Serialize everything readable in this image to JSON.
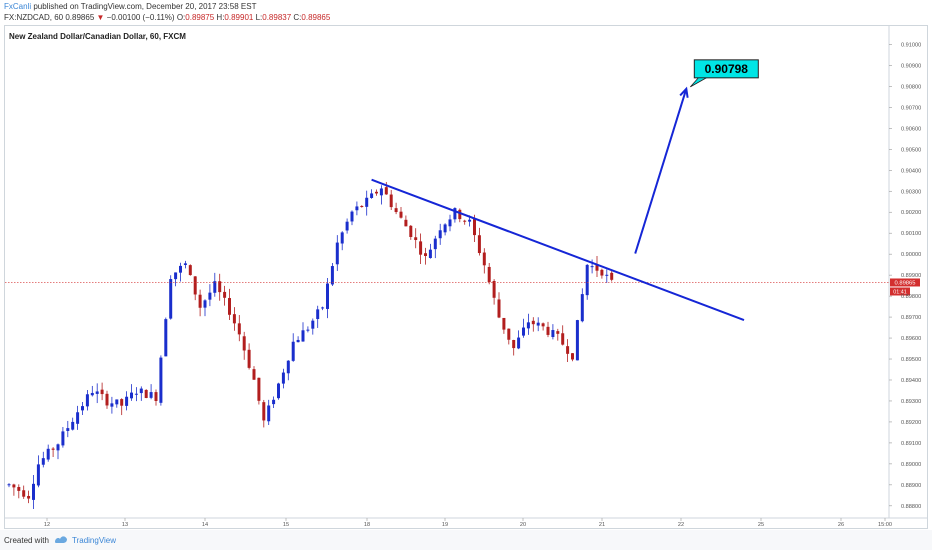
{
  "header": {
    "author": "FxCanli",
    "published_text": "published on TradingView.com, December 20, 2017 23:58 EST",
    "symbol": "FX:NZDCAD, 60",
    "last": "0.89865",
    "change": "−0.00100 (−0.11%)",
    "open_label": "O:",
    "open": "0.89875",
    "high_label": "H:",
    "high": "0.89901",
    "low_label": "L:",
    "low": "0.89837",
    "close_label": "C:",
    "close": "0.89865"
  },
  "footer": {
    "created_with": "Created with",
    "brand": "TradingView"
  },
  "colors": {
    "bull": "#1a2ecc",
    "bear": "#b21e1e",
    "trendline": "#1526d6",
    "target_fill": "#00e5e5",
    "price_line": "#d32f2f"
  },
  "chart_data": {
    "type": "candlestick",
    "title": "New Zealand Dollar/Canadian Dollar, 60, FXCM",
    "x_ticks": [
      "12",
      "13",
      "14",
      "15",
      "18",
      "19",
      "20",
      "21",
      "22",
      "25",
      "26",
      "15:00"
    ],
    "y_ticks": [
      "0.91000",
      "0.90900",
      "0.90800",
      "0.90700",
      "0.90600",
      "0.90500",
      "0.90400",
      "0.90300",
      "0.90200",
      "0.90100",
      "0.90000",
      "0.89900",
      "0.89800",
      "0.89700",
      "0.89600",
      "0.89500",
      "0.89400",
      "0.89300",
      "0.89200",
      "0.89100",
      "0.89000",
      "0.88900",
      "0.88800"
    ],
    "ylim": [
      0.888,
      0.911
    ],
    "current_price_label": "0.89865",
    "countdown_label": "01:41",
    "target_label": "0.90798",
    "path": [
      [
        0,
        0.889
      ],
      [
        4,
        0.8885
      ],
      [
        6,
        0.89
      ],
      [
        10,
        0.891
      ],
      [
        14,
        0.8925
      ],
      [
        17,
        0.8935
      ],
      [
        20,
        0.893
      ],
      [
        23,
        0.8928
      ],
      [
        26,
        0.8935
      ],
      [
        30,
        0.8932
      ],
      [
        33,
        0.899
      ],
      [
        36,
        0.8995
      ],
      [
        39,
        0.8975
      ],
      [
        42,
        0.8985
      ],
      [
        45,
        0.8973
      ],
      [
        47,
        0.8962
      ],
      [
        50,
        0.894
      ],
      [
        52,
        0.892
      ],
      [
        55,
        0.8938
      ],
      [
        58,
        0.8958
      ],
      [
        61,
        0.8965
      ],
      [
        64,
        0.8975
      ],
      [
        67,
        0.9005
      ],
      [
        70,
        0.902
      ],
      [
        73,
        0.9025
      ],
      [
        76,
        0.9032
      ],
      [
        79,
        0.902
      ],
      [
        82,
        0.901
      ],
      [
        85,
        0.8998
      ],
      [
        88,
        0.9013
      ],
      [
        91,
        0.902
      ],
      [
        94,
        0.9015
      ],
      [
        97,
        0.8995
      ],
      [
        100,
        0.897
      ],
      [
        103,
        0.8955
      ],
      [
        106,
        0.8968
      ],
      [
        109,
        0.8965
      ],
      [
        112,
        0.896
      ],
      [
        115,
        0.8952
      ],
      [
        118,
        0.8995
      ],
      [
        121,
        0.8992
      ],
      [
        123,
        0.8986
      ]
    ],
    "trendline": {
      "from": [
        74,
        0.90355
      ],
      "to": [
        150,
        0.89686
      ]
    },
    "target_arrow": {
      "from": [
        118,
        0.90003
      ],
      "to": [
        127,
        0.90798
      ]
    }
  }
}
